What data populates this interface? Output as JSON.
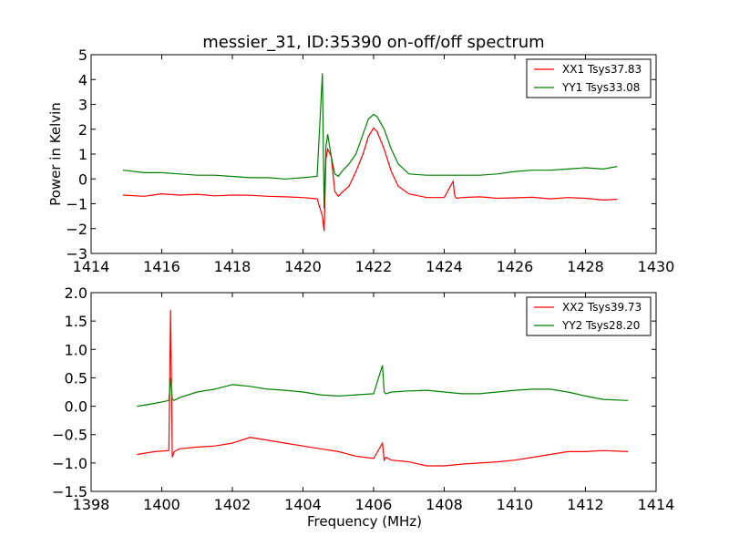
{
  "figure": {
    "title": "messier_31, ID:35390 on-off/off spectrum"
  },
  "chart_data": [
    {
      "type": "line",
      "title": "messier_31, ID:35390 on-off/off spectrum",
      "xlabel": "",
      "ylabel": "Power in Kelvin",
      "xlim": [
        1414,
        1430
      ],
      "ylim": [
        -3,
        5
      ],
      "x_ticks": [
        1414,
        1416,
        1418,
        1420,
        1422,
        1424,
        1426,
        1428,
        1430
      ],
      "y_ticks": [
        -3,
        -2,
        -1,
        0,
        1,
        2,
        3,
        4,
        5
      ],
      "grid": false,
      "legend_position": "top-right",
      "series": [
        {
          "name": "XX1 Tsys37.83",
          "color": "#ff0000",
          "x": [
            1414.9,
            1415.5,
            1416,
            1416.5,
            1417,
            1417.5,
            1418,
            1418.5,
            1419,
            1419.5,
            1420,
            1420.4,
            1420.55,
            1420.6,
            1420.65,
            1420.7,
            1420.8,
            1420.9,
            1421.0,
            1421.1,
            1421.3,
            1421.5,
            1421.7,
            1421.85,
            1422.0,
            1422.1,
            1422.3,
            1422.5,
            1422.7,
            1423.0,
            1423.5,
            1424.0,
            1424.25,
            1424.3,
            1424.35,
            1424.5,
            1425,
            1425.5,
            1426,
            1426.5,
            1427,
            1427.5,
            1428,
            1428.5,
            1428.9
          ],
          "y": [
            -0.65,
            -0.7,
            -0.6,
            -0.65,
            -0.62,
            -0.68,
            -0.65,
            -0.66,
            -0.7,
            -0.72,
            -0.75,
            -0.8,
            -1.5,
            -2.1,
            0.8,
            1.2,
            0.9,
            -0.5,
            -0.7,
            -0.55,
            -0.3,
            0.3,
            1.0,
            1.7,
            2.05,
            1.9,
            1.2,
            0.3,
            -0.3,
            -0.6,
            -0.75,
            -0.75,
            -0.1,
            -0.7,
            -0.78,
            -0.75,
            -0.72,
            -0.78,
            -0.76,
            -0.74,
            -0.8,
            -0.75,
            -0.78,
            -0.85,
            -0.82
          ]
        },
        {
          "name": "YY1 Tsys33.08",
          "color": "#008000",
          "x": [
            1414.9,
            1415.5,
            1416,
            1416.5,
            1417,
            1417.5,
            1418,
            1418.5,
            1419,
            1419.5,
            1420,
            1420.4,
            1420.55,
            1420.6,
            1420.65,
            1420.7,
            1420.8,
            1420.9,
            1421.0,
            1421.1,
            1421.3,
            1421.5,
            1421.7,
            1421.85,
            1422.0,
            1422.1,
            1422.3,
            1422.5,
            1422.7,
            1423.0,
            1423.5,
            1424.0,
            1424.5,
            1425,
            1425.5,
            1426,
            1426.5,
            1427,
            1427.5,
            1428,
            1428.5,
            1428.9
          ],
          "y": [
            0.35,
            0.25,
            0.25,
            0.2,
            0.15,
            0.15,
            0.1,
            0.05,
            0.05,
            0.0,
            0.05,
            0.1,
            4.25,
            -1.2,
            1.3,
            1.8,
            0.9,
            0.2,
            0.1,
            0.3,
            0.6,
            1.0,
            1.8,
            2.4,
            2.6,
            2.5,
            2.0,
            1.2,
            0.6,
            0.2,
            0.15,
            0.15,
            0.15,
            0.15,
            0.2,
            0.3,
            0.35,
            0.35,
            0.4,
            0.45,
            0.4,
            0.5
          ]
        }
      ]
    },
    {
      "type": "line",
      "title": "",
      "xlabel": "Frequency (MHz)",
      "ylabel": "",
      "xlim": [
        1398,
        1414
      ],
      "ylim": [
        -1.5,
        2.0
      ],
      "x_ticks": [
        1398,
        1400,
        1402,
        1404,
        1406,
        1408,
        1410,
        1412,
        1414
      ],
      "y_ticks": [
        -1.5,
        -1.0,
        -0.5,
        0.0,
        0.5,
        1.0,
        1.5,
        2.0
      ],
      "y_tick_labels": [
        "−1.5",
        "−1.0",
        "−0.5",
        "0.0",
        "0.5",
        "1.0",
        "1.5",
        "2.0"
      ],
      "grid": false,
      "legend_position": "top-right",
      "series": [
        {
          "name": "XX2 Tsys39.73",
          "color": "#ff0000",
          "x": [
            1399.3,
            1399.8,
            1400.2,
            1400.25,
            1400.3,
            1400.35,
            1400.5,
            1401,
            1401.5,
            1402,
            1402.5,
            1403,
            1403.5,
            1404,
            1404.5,
            1405,
            1405.5,
            1406,
            1406.25,
            1406.3,
            1406.35,
            1406.5,
            1407,
            1407.5,
            1408,
            1408.5,
            1409,
            1409.5,
            1410,
            1410.5,
            1411,
            1411.5,
            1412,
            1412.5,
            1413.2
          ],
          "y": [
            -0.85,
            -0.8,
            -0.78,
            1.7,
            -0.9,
            -0.8,
            -0.75,
            -0.72,
            -0.7,
            -0.65,
            -0.55,
            -0.6,
            -0.65,
            -0.7,
            -0.75,
            -0.8,
            -0.88,
            -0.92,
            -0.65,
            -0.95,
            -0.9,
            -0.95,
            -0.98,
            -1.05,
            -1.05,
            -1.02,
            -1.0,
            -0.98,
            -0.95,
            -0.9,
            -0.85,
            -0.8,
            -0.8,
            -0.78,
            -0.8
          ]
        },
        {
          "name": "YY2 Tsys28.20",
          "color": "#008000",
          "x": [
            1399.3,
            1399.8,
            1400.2,
            1400.25,
            1400.3,
            1400.35,
            1400.5,
            1401,
            1401.5,
            1402,
            1402.5,
            1403,
            1403.5,
            1404,
            1404.5,
            1405,
            1405.5,
            1406,
            1406.25,
            1406.3,
            1406.35,
            1406.5,
            1407,
            1407.5,
            1408,
            1408.5,
            1409,
            1409.5,
            1410,
            1410.5,
            1411,
            1411.5,
            1412,
            1412.5,
            1413.2
          ],
          "y": [
            0.0,
            0.05,
            0.1,
            0.5,
            0.12,
            0.1,
            0.15,
            0.25,
            0.3,
            0.38,
            0.35,
            0.3,
            0.28,
            0.25,
            0.2,
            0.18,
            0.2,
            0.22,
            0.72,
            0.25,
            0.22,
            0.25,
            0.27,
            0.28,
            0.25,
            0.22,
            0.22,
            0.25,
            0.28,
            0.3,
            0.3,
            0.25,
            0.18,
            0.12,
            0.1
          ]
        }
      ]
    }
  ]
}
